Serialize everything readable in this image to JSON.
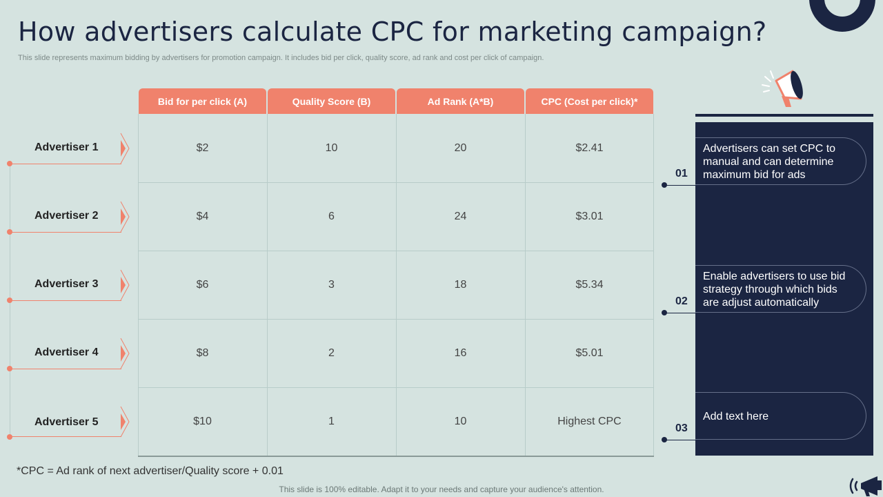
{
  "title": "How advertisers calculate CPC for marketing campaign?",
  "subtitle": "This slide represents maximum bidding by advertisers for promotion campaign. It includes bid per click, quality score, ad rank and cost per click of campaign.",
  "table": {
    "headers": [
      "Bid for per click (A)",
      "Quality Score (B)",
      "Ad Rank (A*B)",
      "CPC (Cost per click)*"
    ],
    "rows": [
      {
        "label": "Advertiser 1",
        "cells": [
          "$2",
          "10",
          "20",
          "$2.41"
        ]
      },
      {
        "label": "Advertiser 2",
        "cells": [
          "$4",
          "6",
          "24",
          "$3.01"
        ]
      },
      {
        "label": "Advertiser 3",
        "cells": [
          "$6",
          "3",
          "18",
          "$5.34"
        ]
      },
      {
        "label": "Advertiser 4",
        "cells": [
          "$8",
          "2",
          "16",
          "$5.01"
        ]
      },
      {
        "label": "Advertiser 5",
        "cells": [
          "$10",
          "1",
          "10",
          "Highest CPC"
        ]
      }
    ]
  },
  "side_points": [
    {
      "number": "01",
      "text": "Advertisers can set CPC to manual and can determine maximum bid for ads"
    },
    {
      "number": "02",
      "text": "Enable advertisers to use bid strategy through which bids are adjust automatically"
    },
    {
      "number": "03",
      "text": "Add text here"
    }
  ],
  "footnote": "*CPC = Ad rank of next advertiser/Quality  score + 0.01",
  "footer": "This slide is 100% editable. Adapt it to your needs and capture your audience's attention.",
  "colors": {
    "accent": "#f0826c",
    "navy": "#1b2542",
    "background": "#d5e3e0"
  },
  "icons": [
    "megaphone-icon",
    "ring-decoration",
    "megaphone-small-icon"
  ]
}
